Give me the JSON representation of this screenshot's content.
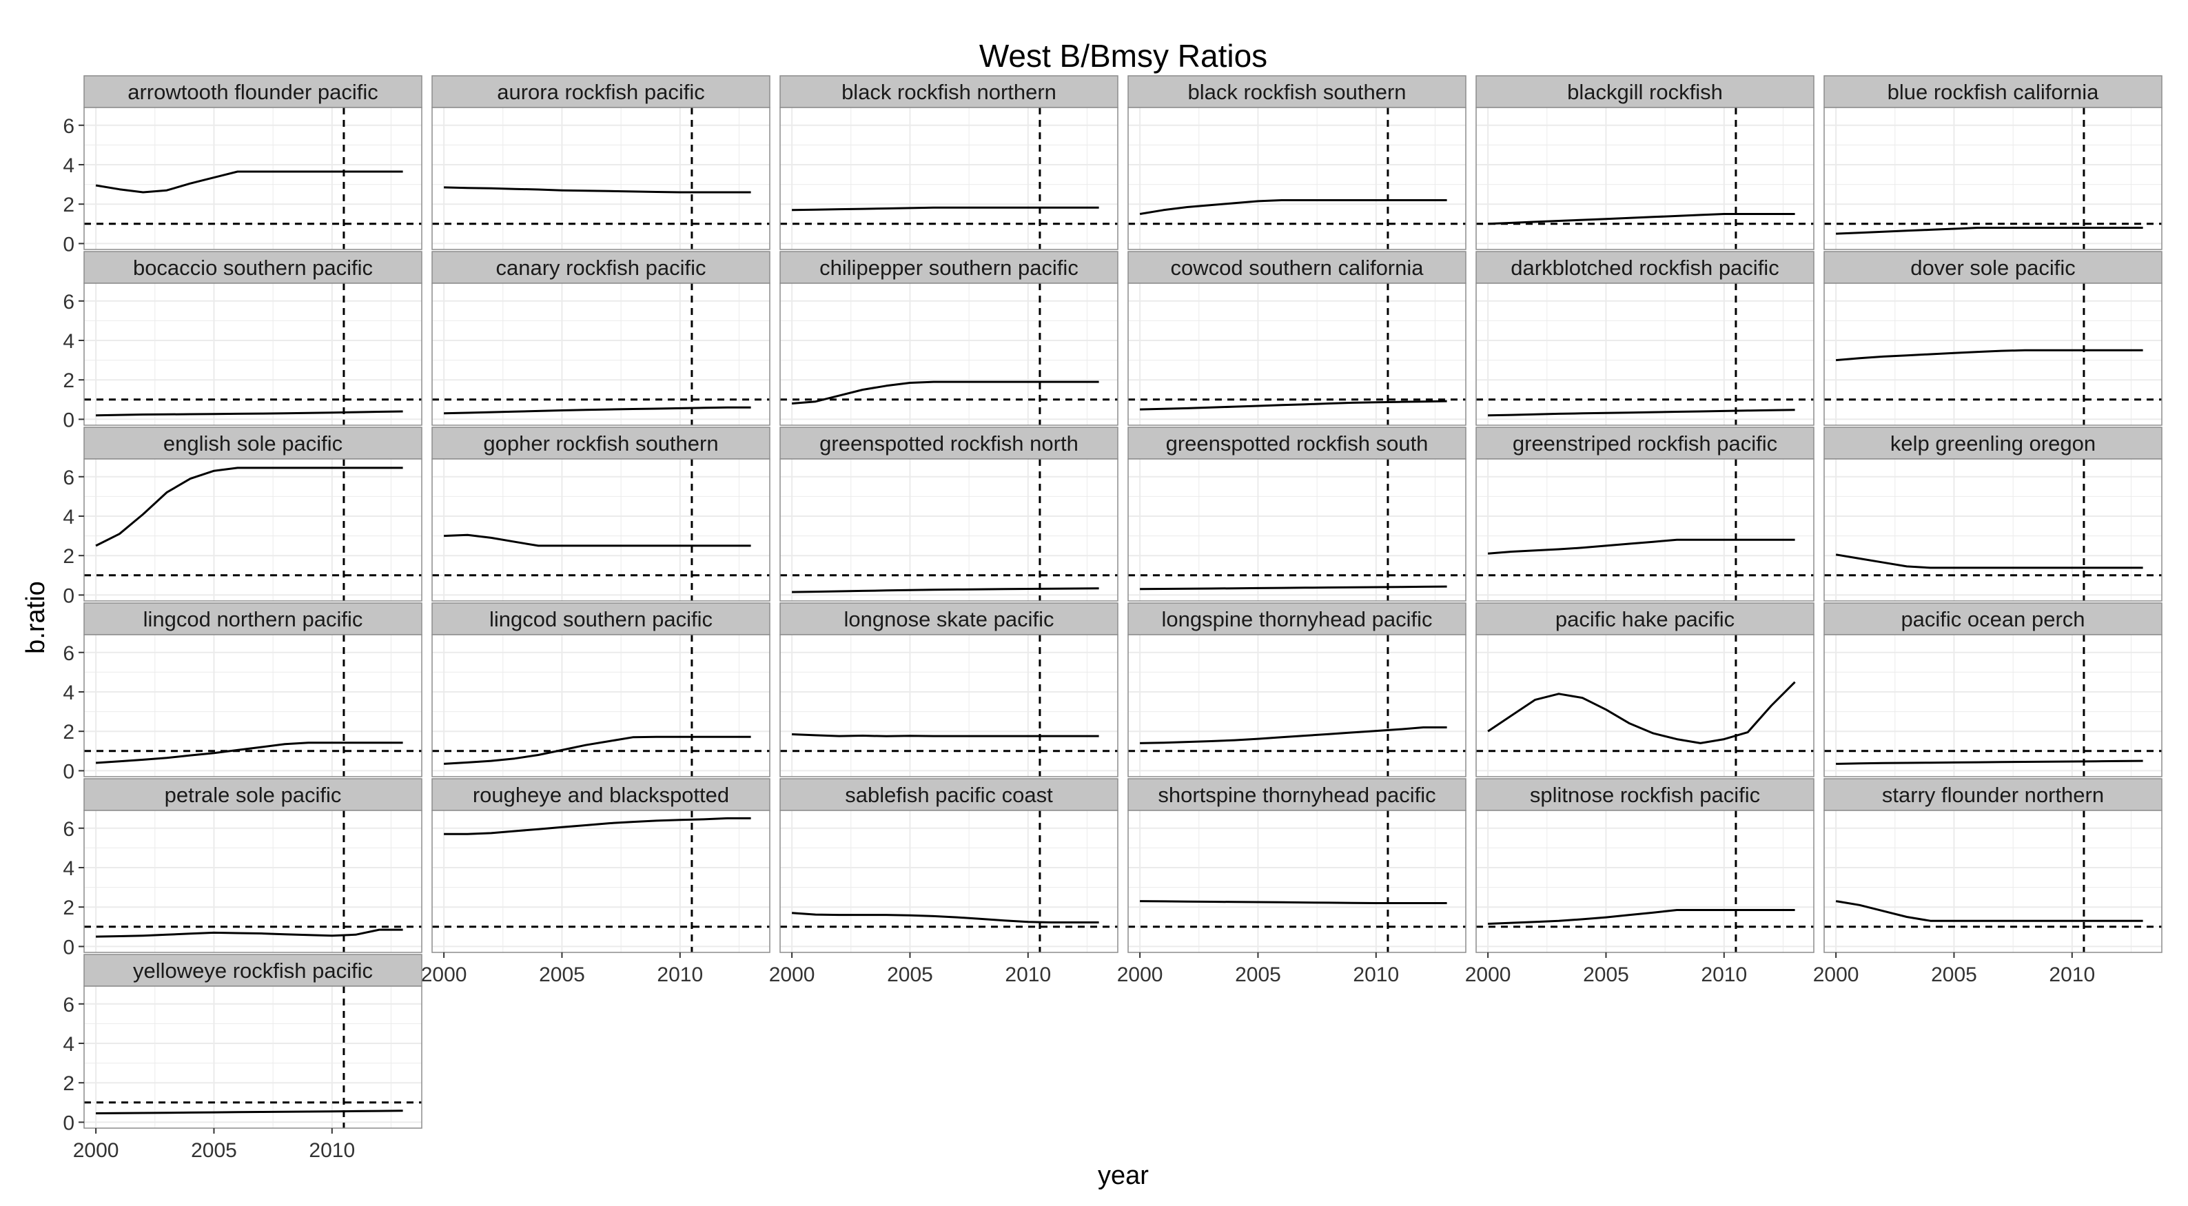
{
  "chart_data": {
    "type": "line",
    "title": "West B/Bmsy Ratios",
    "xlabel": "year",
    "ylabel": "b.ratio",
    "xlim": [
      1999.5,
      2013.8
    ],
    "ylim": [
      -0.3,
      6.9
    ],
    "x_ticks": [
      2000,
      2005,
      2010
    ],
    "x_tick_labels": [
      "2000",
      "2005",
      "2010"
    ],
    "y_ticks": [
      0,
      2,
      4,
      6
    ],
    "y_tick_labels": [
      "0",
      "2",
      "4",
      "6"
    ],
    "reference_hline": 1,
    "reference_vline": 2010.5,
    "grid": true,
    "facets_per_row": 6,
    "colors": {
      "panel_bg": "#ffffff",
      "grid": "#ebebeb",
      "strip_bg": "#c4c4c4",
      "line": "#000000",
      "border": "#8c8c8c"
    },
    "x": [
      2000,
      2001,
      2002,
      2003,
      2004,
      2005,
      2006,
      2007,
      2008,
      2009,
      2010,
      2011,
      2012,
      2013
    ],
    "series": [
      {
        "name": "arrowtooth flounder pacific",
        "values": [
          2.95,
          2.75,
          2.6,
          2.7,
          3.05,
          3.35,
          3.65,
          3.65,
          3.65,
          3.65,
          3.65,
          3.65,
          3.65,
          3.65
        ]
      },
      {
        "name": "aurora rockfish pacific",
        "values": [
          2.85,
          2.82,
          2.8,
          2.77,
          2.74,
          2.7,
          2.68,
          2.66,
          2.64,
          2.62,
          2.6,
          2.6,
          2.6,
          2.6
        ]
      },
      {
        "name": "black rockfish northern",
        "values": [
          1.7,
          1.72,
          1.74,
          1.76,
          1.78,
          1.8,
          1.82,
          1.82,
          1.82,
          1.82,
          1.82,
          1.82,
          1.82,
          1.82
        ]
      },
      {
        "name": "black rockfish southern",
        "values": [
          1.5,
          1.7,
          1.85,
          1.95,
          2.05,
          2.15,
          2.2,
          2.2,
          2.2,
          2.2,
          2.2,
          2.2,
          2.2,
          2.2
        ]
      },
      {
        "name": "blackgill rockfish",
        "values": [
          1.0,
          1.05,
          1.1,
          1.15,
          1.2,
          1.25,
          1.3,
          1.35,
          1.4,
          1.45,
          1.5,
          1.5,
          1.5,
          1.5
        ]
      },
      {
        "name": "blue rockfish california",
        "values": [
          0.5,
          0.55,
          0.6,
          0.65,
          0.7,
          0.75,
          0.8,
          0.8,
          0.8,
          0.8,
          0.8,
          0.8,
          0.8,
          0.8
        ]
      },
      {
        "name": "bocaccio southern pacific",
        "values": [
          0.2,
          0.22,
          0.24,
          0.25,
          0.26,
          0.27,
          0.28,
          0.29,
          0.3,
          0.32,
          0.34,
          0.36,
          0.38,
          0.4
        ]
      },
      {
        "name": "canary rockfish pacific",
        "values": [
          0.3,
          0.33,
          0.36,
          0.39,
          0.42,
          0.45,
          0.48,
          0.5,
          0.52,
          0.54,
          0.56,
          0.58,
          0.6,
          0.6
        ]
      },
      {
        "name": "chilipepper southern pacific",
        "values": [
          0.8,
          0.9,
          1.2,
          1.5,
          1.7,
          1.85,
          1.9,
          1.9,
          1.9,
          1.9,
          1.9,
          1.9,
          1.9,
          1.9
        ]
      },
      {
        "name": "cowcod southern california",
        "values": [
          0.5,
          0.53,
          0.56,
          0.6,
          0.64,
          0.68,
          0.72,
          0.76,
          0.8,
          0.84,
          0.86,
          0.88,
          0.9,
          0.92
        ]
      },
      {
        "name": "darkblotched rockfish pacific",
        "values": [
          0.2,
          0.22,
          0.25,
          0.28,
          0.3,
          0.32,
          0.34,
          0.36,
          0.38,
          0.4,
          0.42,
          0.44,
          0.46,
          0.48
        ]
      },
      {
        "name": "dover sole pacific",
        "values": [
          3.0,
          3.1,
          3.18,
          3.24,
          3.3,
          3.36,
          3.42,
          3.47,
          3.5,
          3.5,
          3.5,
          3.5,
          3.5,
          3.5
        ]
      },
      {
        "name": "english sole pacific",
        "values": [
          2.5,
          3.1,
          4.1,
          5.2,
          5.9,
          6.3,
          6.45,
          6.45,
          6.45,
          6.45,
          6.45,
          6.45,
          6.45,
          6.45
        ]
      },
      {
        "name": "gopher rockfish southern",
        "values": [
          3.0,
          3.05,
          2.9,
          2.7,
          2.5,
          2.5,
          2.5,
          2.5,
          2.5,
          2.5,
          2.5,
          2.5,
          2.5,
          2.5
        ]
      },
      {
        "name": "greenspotted rockfish north",
        "values": [
          0.15,
          0.17,
          0.19,
          0.21,
          0.23,
          0.25,
          0.27,
          0.28,
          0.29,
          0.3,
          0.31,
          0.32,
          0.33,
          0.34
        ]
      },
      {
        "name": "greenspotted rockfish south",
        "values": [
          0.3,
          0.31,
          0.32,
          0.33,
          0.34,
          0.35,
          0.36,
          0.37,
          0.38,
          0.39,
          0.4,
          0.41,
          0.42,
          0.43
        ]
      },
      {
        "name": "greenstriped rockfish pacific",
        "values": [
          2.1,
          2.2,
          2.26,
          2.32,
          2.4,
          2.5,
          2.6,
          2.7,
          2.8,
          2.8,
          2.8,
          2.8,
          2.8,
          2.8
        ]
      },
      {
        "name": "kelp greenling oregon",
        "values": [
          2.05,
          1.85,
          1.65,
          1.45,
          1.38,
          1.38,
          1.38,
          1.38,
          1.38,
          1.38,
          1.38,
          1.38,
          1.38,
          1.38
        ]
      },
      {
        "name": "lingcod northern pacific",
        "values": [
          0.4,
          0.48,
          0.56,
          0.65,
          0.78,
          0.9,
          1.05,
          1.2,
          1.35,
          1.42,
          1.42,
          1.42,
          1.42,
          1.42
        ]
      },
      {
        "name": "lingcod southern pacific",
        "values": [
          0.35,
          0.42,
          0.5,
          0.62,
          0.8,
          1.05,
          1.3,
          1.5,
          1.7,
          1.72,
          1.72,
          1.72,
          1.72,
          1.72
        ]
      },
      {
        "name": "longnose skate pacific",
        "values": [
          1.85,
          1.8,
          1.76,
          1.78,
          1.75,
          1.77,
          1.76,
          1.76,
          1.76,
          1.76,
          1.76,
          1.76,
          1.76,
          1.76
        ]
      },
      {
        "name": "longspine thornyhead pacific",
        "values": [
          1.4,
          1.42,
          1.46,
          1.5,
          1.55,
          1.62,
          1.7,
          1.78,
          1.86,
          1.94,
          2.02,
          2.1,
          2.2,
          2.2
        ]
      },
      {
        "name": "pacific hake pacific",
        "values": [
          2.0,
          2.8,
          3.6,
          3.9,
          3.7,
          3.1,
          2.4,
          1.9,
          1.6,
          1.4,
          1.6,
          1.95,
          3.3,
          4.5
        ]
      },
      {
        "name": "pacific ocean perch",
        "values": [
          0.35,
          0.37,
          0.39,
          0.4,
          0.41,
          0.42,
          0.43,
          0.44,
          0.45,
          0.46,
          0.47,
          0.48,
          0.49,
          0.5
        ]
      },
      {
        "name": "petrale sole pacific",
        "values": [
          0.5,
          0.52,
          0.55,
          0.6,
          0.65,
          0.7,
          0.68,
          0.66,
          0.62,
          0.58,
          0.55,
          0.6,
          0.85,
          0.85
        ]
      },
      {
        "name": "rougheye and blackspotted",
        "values": [
          5.7,
          5.7,
          5.75,
          5.85,
          5.95,
          6.05,
          6.15,
          6.25,
          6.32,
          6.38,
          6.42,
          6.45,
          6.5,
          6.5
        ]
      },
      {
        "name": "sablefish pacific coast",
        "values": [
          1.7,
          1.62,
          1.6,
          1.6,
          1.6,
          1.58,
          1.54,
          1.48,
          1.4,
          1.32,
          1.25,
          1.22,
          1.22,
          1.22
        ]
      },
      {
        "name": "shortspine thornyhead pacific",
        "values": [
          2.3,
          2.29,
          2.28,
          2.27,
          2.26,
          2.25,
          2.24,
          2.23,
          2.22,
          2.21,
          2.2,
          2.2,
          2.2,
          2.2
        ]
      },
      {
        "name": "splitnose rockfish pacific",
        "values": [
          1.15,
          1.2,
          1.25,
          1.3,
          1.38,
          1.48,
          1.6,
          1.72,
          1.85,
          1.85,
          1.85,
          1.85,
          1.85,
          1.85
        ]
      },
      {
        "name": "starry flounder northern",
        "values": [
          2.3,
          2.1,
          1.8,
          1.5,
          1.3,
          1.3,
          1.3,
          1.3,
          1.3,
          1.3,
          1.3,
          1.3,
          1.3,
          1.3
        ]
      },
      {
        "name": "yelloweye rockfish pacific",
        "values": [
          0.45,
          0.46,
          0.47,
          0.48,
          0.49,
          0.5,
          0.51,
          0.52,
          0.53,
          0.54,
          0.55,
          0.56,
          0.57,
          0.58
        ]
      }
    ]
  }
}
